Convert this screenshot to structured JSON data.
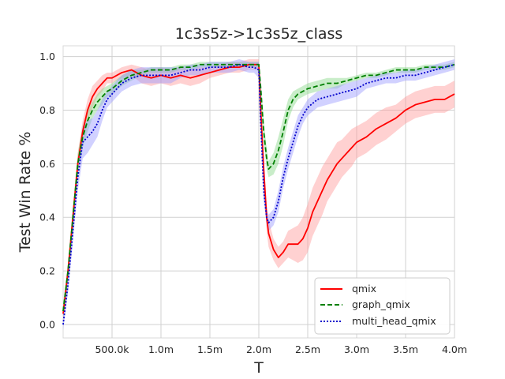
{
  "chart_data": {
    "type": "line",
    "title": "1c3s5z->1c3s5z_class",
    "xlabel": "T",
    "ylabel": "Test Win Rate %",
    "xlim": [
      0,
      4000000
    ],
    "ylim": [
      -0.05,
      1.04
    ],
    "x_ticks": [
      {
        "value": 500000,
        "label": "500.0k"
      },
      {
        "value": 1000000,
        "label": "1.0m"
      },
      {
        "value": 1500000,
        "label": "1.5m"
      },
      {
        "value": 2000000,
        "label": "2.0m"
      },
      {
        "value": 2500000,
        "label": "2.5m"
      },
      {
        "value": 3000000,
        "label": "3.0m"
      },
      {
        "value": 3500000,
        "label": "3.5m"
      },
      {
        "value": 4000000,
        "label": "4.0m"
      }
    ],
    "y_ticks": [
      {
        "value": 0.0,
        "label": "0.0"
      },
      {
        "value": 0.2,
        "label": "0.2"
      },
      {
        "value": 0.4,
        "label": "0.4"
      },
      {
        "value": 0.6,
        "label": "0.6"
      },
      {
        "value": 0.8,
        "label": "0.8"
      },
      {
        "value": 1.0,
        "label": "1.0"
      }
    ],
    "grid": true,
    "legend_position": "lower-right",
    "series": [
      {
        "name": "qmix",
        "color": "#ff0000",
        "dash": "solid",
        "band_color": "#ff9999",
        "x": [
          0,
          50000,
          100000,
          150000,
          200000,
          250000,
          300000,
          350000,
          400000,
          450000,
          500000,
          600000,
          700000,
          800000,
          900000,
          1000000,
          1100000,
          1200000,
          1300000,
          1400000,
          1500000,
          1600000,
          1700000,
          1800000,
          1900000,
          1950000,
          2000000,
          2020000,
          2050000,
          2080000,
          2100000,
          2150000,
          2200000,
          2250000,
          2300000,
          2350000,
          2400000,
          2450000,
          2500000,
          2550000,
          2600000,
          2650000,
          2700000,
          2750000,
          2800000,
          2850000,
          2900000,
          2950000,
          3000000,
          3100000,
          3200000,
          3300000,
          3400000,
          3500000,
          3600000,
          3700000,
          3800000,
          3900000,
          4000000
        ],
        "y": [
          0.04,
          0.2,
          0.4,
          0.6,
          0.72,
          0.8,
          0.85,
          0.88,
          0.9,
          0.92,
          0.92,
          0.94,
          0.95,
          0.93,
          0.92,
          0.93,
          0.92,
          0.93,
          0.92,
          0.93,
          0.94,
          0.95,
          0.96,
          0.96,
          0.97,
          0.97,
          0.97,
          0.8,
          0.58,
          0.4,
          0.34,
          0.28,
          0.25,
          0.27,
          0.3,
          0.3,
          0.3,
          0.32,
          0.36,
          0.42,
          0.46,
          0.5,
          0.54,
          0.57,
          0.6,
          0.62,
          0.64,
          0.66,
          0.68,
          0.7,
          0.73,
          0.75,
          0.77,
          0.8,
          0.82,
          0.83,
          0.84,
          0.84,
          0.86
        ],
        "band": [
          0.03,
          0.03,
          0.04,
          0.04,
          0.04,
          0.04,
          0.04,
          0.03,
          0.03,
          0.02,
          0.02,
          0.02,
          0.02,
          0.03,
          0.03,
          0.03,
          0.03,
          0.03,
          0.03,
          0.03,
          0.02,
          0.02,
          0.02,
          0.02,
          0.02,
          0.02,
          0.02,
          0.04,
          0.05,
          0.05,
          0.05,
          0.04,
          0.04,
          0.04,
          0.05,
          0.06,
          0.07,
          0.08,
          0.09,
          0.09,
          0.09,
          0.09,
          0.08,
          0.08,
          0.08,
          0.07,
          0.07,
          0.07,
          0.06,
          0.06,
          0.06,
          0.06,
          0.05,
          0.05,
          0.05,
          0.05,
          0.05,
          0.05,
          0.05
        ]
      },
      {
        "name": "graph_qmix",
        "color": "#008000",
        "dash": "dashed",
        "band_color": "#88d888",
        "x": [
          0,
          50000,
          100000,
          150000,
          200000,
          250000,
          300000,
          350000,
          400000,
          450000,
          500000,
          600000,
          700000,
          800000,
          900000,
          1000000,
          1100000,
          1200000,
          1300000,
          1400000,
          1500000,
          1600000,
          1700000,
          1800000,
          1900000,
          1950000,
          2000000,
          2020000,
          2050000,
          2080000,
          2100000,
          2150000,
          2200000,
          2250000,
          2300000,
          2350000,
          2400000,
          2450000,
          2500000,
          2600000,
          2700000,
          2800000,
          2900000,
          3000000,
          3100000,
          3200000,
          3300000,
          3400000,
          3500000,
          3600000,
          3700000,
          3800000,
          3900000,
          4000000
        ],
        "y": [
          0.05,
          0.2,
          0.4,
          0.6,
          0.7,
          0.76,
          0.8,
          0.83,
          0.85,
          0.87,
          0.88,
          0.91,
          0.93,
          0.94,
          0.95,
          0.95,
          0.95,
          0.96,
          0.96,
          0.97,
          0.97,
          0.97,
          0.97,
          0.97,
          0.97,
          0.97,
          0.97,
          0.88,
          0.72,
          0.62,
          0.58,
          0.6,
          0.65,
          0.72,
          0.8,
          0.84,
          0.86,
          0.87,
          0.88,
          0.89,
          0.9,
          0.9,
          0.91,
          0.92,
          0.93,
          0.93,
          0.94,
          0.95,
          0.95,
          0.95,
          0.96,
          0.96,
          0.96,
          0.97
        ],
        "band": [
          0.03,
          0.03,
          0.04,
          0.04,
          0.04,
          0.04,
          0.03,
          0.03,
          0.03,
          0.02,
          0.02,
          0.02,
          0.02,
          0.01,
          0.01,
          0.01,
          0.01,
          0.01,
          0.01,
          0.01,
          0.01,
          0.01,
          0.01,
          0.01,
          0.01,
          0.01,
          0.01,
          0.03,
          0.04,
          0.04,
          0.03,
          0.04,
          0.05,
          0.05,
          0.04,
          0.03,
          0.02,
          0.02,
          0.02,
          0.02,
          0.02,
          0.02,
          0.01,
          0.01,
          0.01,
          0.01,
          0.01,
          0.01,
          0.01,
          0.01,
          0.01,
          0.01,
          0.01,
          0.01
        ]
      },
      {
        "name": "multi_head_qmix",
        "color": "#0000cc",
        "dash": "dotted",
        "band_color": "#9999ff",
        "x": [
          0,
          50000,
          100000,
          150000,
          200000,
          250000,
          300000,
          350000,
          400000,
          450000,
          500000,
          600000,
          700000,
          800000,
          900000,
          1000000,
          1100000,
          1200000,
          1300000,
          1400000,
          1500000,
          1600000,
          1700000,
          1800000,
          1900000,
          1950000,
          2000000,
          2020000,
          2050000,
          2080000,
          2100000,
          2150000,
          2200000,
          2250000,
          2300000,
          2350000,
          2400000,
          2450000,
          2500000,
          2600000,
          2700000,
          2800000,
          2900000,
          3000000,
          3100000,
          3200000,
          3300000,
          3400000,
          3500000,
          3600000,
          3700000,
          3800000,
          3900000,
          4000000
        ],
        "y": [
          0.0,
          0.15,
          0.35,
          0.55,
          0.68,
          0.7,
          0.72,
          0.75,
          0.8,
          0.84,
          0.86,
          0.9,
          0.92,
          0.93,
          0.93,
          0.93,
          0.93,
          0.94,
          0.95,
          0.95,
          0.96,
          0.96,
          0.96,
          0.97,
          0.96,
          0.96,
          0.95,
          0.75,
          0.5,
          0.4,
          0.38,
          0.4,
          0.46,
          0.55,
          0.62,
          0.68,
          0.74,
          0.78,
          0.81,
          0.84,
          0.85,
          0.86,
          0.87,
          0.88,
          0.9,
          0.91,
          0.92,
          0.92,
          0.93,
          0.93,
          0.94,
          0.95,
          0.96,
          0.97
        ],
        "band": [
          0.03,
          0.03,
          0.04,
          0.05,
          0.06,
          0.06,
          0.05,
          0.05,
          0.04,
          0.03,
          0.03,
          0.03,
          0.03,
          0.03,
          0.03,
          0.03,
          0.03,
          0.02,
          0.02,
          0.02,
          0.02,
          0.02,
          0.02,
          0.02,
          0.02,
          0.02,
          0.03,
          0.04,
          0.04,
          0.03,
          0.03,
          0.03,
          0.04,
          0.04,
          0.04,
          0.04,
          0.04,
          0.03,
          0.03,
          0.03,
          0.03,
          0.03,
          0.03,
          0.03,
          0.02,
          0.02,
          0.02,
          0.02,
          0.02,
          0.02,
          0.02,
          0.02,
          0.02,
          0.02
        ]
      }
    ]
  }
}
